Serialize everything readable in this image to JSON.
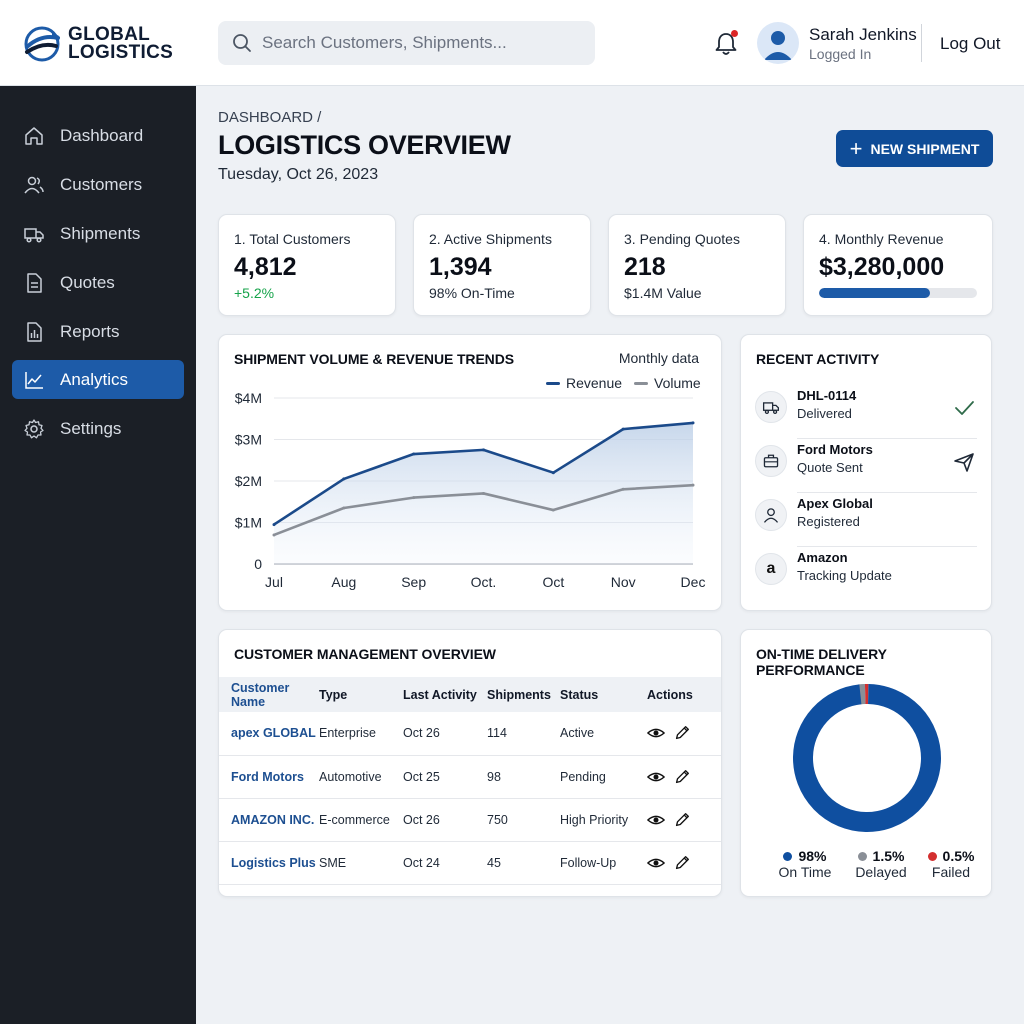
{
  "header": {
    "logo_line1": "GLOBAL",
    "logo_line2": "LOGISTICS",
    "search_placeholder": "Search Customers, Shipments...",
    "user_name": "Sarah Jenkins",
    "user_status": "Logged In",
    "logout_label": "Log Out"
  },
  "sidebar": {
    "items": [
      {
        "label": "Dashboard",
        "icon": "home-icon"
      },
      {
        "label": "Customers",
        "icon": "users-icon"
      },
      {
        "label": "Shipments",
        "icon": "truck-icon"
      },
      {
        "label": "Quotes",
        "icon": "document-icon"
      },
      {
        "label": "Reports",
        "icon": "report-icon"
      },
      {
        "label": "Analytics",
        "icon": "chart-line-icon",
        "active": true
      },
      {
        "label": "Settings",
        "icon": "gear-icon"
      }
    ]
  },
  "page": {
    "breadcrumb": "DASHBOARD /",
    "title": "LOGISTICS OVERVIEW",
    "date": "Tuesday, Oct 26, 2023",
    "new_button_label": "NEW SHIPMENT"
  },
  "stats": [
    {
      "label": "1. Total Customers",
      "value": "4,812",
      "sub": "+5.2%"
    },
    {
      "label": "2. Active Shipments",
      "value": "1,394",
      "sub": "98% On-Time"
    },
    {
      "label": "3. Pending Quotes",
      "value": "218",
      "sub": "$1.4M Value"
    },
    {
      "label": "4. Monthly Revenue",
      "value": "$3,280,000",
      "progress": 0.7
    }
  ],
  "colors": {
    "accent": "#1d5ba8",
    "revenue_line": "#1b4a8a",
    "volume_line": "#8a8f97",
    "positive": "#16a34a",
    "on_time": "#0f4fa0",
    "delayed": "#8a8f97",
    "failed": "#d32f2f"
  },
  "trends": {
    "title": "SHIPMENT VOLUME & REVENUE TRENDS",
    "note": "Monthly data"
  },
  "chart_data": {
    "type": "line",
    "x": [
      "Jul",
      "Aug",
      "Sep",
      "Oct.",
      "Oct",
      "Nov",
      "Dec"
    ],
    "series": [
      {
        "name": "Revenue",
        "values": [
          0.95,
          2.05,
          2.65,
          2.75,
          2.2,
          3.25,
          3.4
        ]
      },
      {
        "name": "Volume",
        "values": [
          0.7,
          1.35,
          1.6,
          1.7,
          1.3,
          1.8,
          1.9
        ]
      }
    ],
    "ylim": [
      0,
      4
    ],
    "yticks": [
      "0",
      "$1M",
      "$2M",
      "$3M",
      "$4M"
    ],
    "grid": true,
    "legend": "top-right"
  },
  "activity": {
    "title": "RECENT ACTIVITY",
    "items": [
      {
        "title": "DHL-0114",
        "sub": "Delivered",
        "icon": "truck-icon",
        "end_icon": "check-icon"
      },
      {
        "title": "Ford Motors",
        "sub": "Quote Sent",
        "icon": "briefcase-icon",
        "end_icon": "send-icon"
      },
      {
        "title": "Apex Global",
        "sub": "Registered",
        "icon": "user-icon",
        "end_icon": ""
      },
      {
        "title": "Amazon",
        "sub": "Tracking Update",
        "icon": "amazon-icon",
        "icon_text": "a",
        "end_icon": ""
      }
    ]
  },
  "customers": {
    "title": "CUSTOMER MANAGEMENT OVERVIEW",
    "columns": [
      "Customer Name",
      "Type",
      "Last Activity",
      "Shipments",
      "Status",
      "Actions"
    ],
    "rows": [
      [
        "apex GLOBAL",
        "Enterprise",
        "Oct 26",
        "114",
        "Active"
      ],
      [
        "Ford Motors",
        "Automotive",
        "Oct 25",
        "98",
        "Pending"
      ],
      [
        "AMAZON INC.",
        "E-commerce",
        "Oct 26",
        "750",
        "High Priority"
      ],
      [
        "Logistics Plus",
        "SME",
        "Oct 24",
        "45",
        "Follow-Up"
      ]
    ]
  },
  "delivery": {
    "title": "ON-TIME DELIVERY PERFORMANCE",
    "segments": [
      {
        "pct": "98%",
        "label": "On Time",
        "value": 98
      },
      {
        "pct": "1.5%",
        "label": "Delayed",
        "value": 1.5
      },
      {
        "pct": "0.5%",
        "label": "Failed",
        "value": 0.5
      }
    ]
  }
}
